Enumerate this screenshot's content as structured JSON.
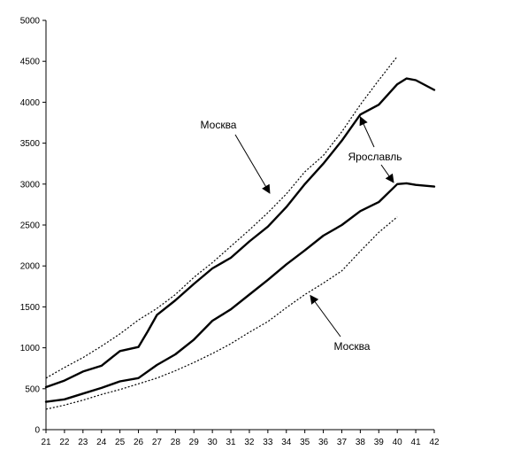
{
  "chart_data": {
    "type": "line",
    "xlim": [
      21,
      42
    ],
    "ylim": [
      0,
      5000
    ],
    "x_ticks": [
      "21",
      "22",
      "23",
      "24",
      "25",
      "26",
      "27",
      "28",
      "29",
      "30",
      "31",
      "32",
      "33",
      "34",
      "35",
      "36",
      "37",
      "38",
      "39",
      "40",
      "41",
      "42"
    ],
    "y_ticks": [
      "0",
      "500",
      "1000",
      "1500",
      "2000",
      "2500",
      "3000",
      "3500",
      "4000",
      "4500",
      "5000"
    ],
    "grid": false,
    "series": [
      {
        "name": "Ярославль",
        "style": "solid",
        "role": "upper",
        "x": [
          21,
          22,
          23,
          24,
          25,
          26,
          26.5,
          27,
          28,
          29,
          30,
          31,
          32,
          33,
          34,
          35,
          36,
          37,
          38,
          39,
          40,
          40.5,
          41,
          42
        ],
        "y": [
          520,
          600,
          710,
          780,
          960,
          1010,
          1200,
          1400,
          1580,
          1780,
          1970,
          2100,
          2300,
          2480,
          2720,
          3000,
          3250,
          3530,
          3850,
          3970,
          4220,
          4290,
          4270,
          4150
        ]
      },
      {
        "name": "Ярославль",
        "style": "solid",
        "role": "lower",
        "x": [
          21,
          22,
          23,
          24,
          25,
          26,
          27,
          28,
          29,
          30,
          31,
          32,
          33,
          34,
          35,
          36,
          37,
          38,
          39,
          40,
          40.5,
          41,
          42
        ],
        "y": [
          340,
          370,
          440,
          510,
          590,
          630,
          790,
          920,
          1100,
          1330,
          1470,
          1650,
          1830,
          2020,
          2190,
          2370,
          2500,
          2670,
          2780,
          3000,
          3010,
          2990,
          2970
        ]
      },
      {
        "name": "Москва",
        "style": "dotted",
        "role": "upper",
        "x": [
          21,
          22,
          23,
          24,
          25,
          26,
          27,
          28,
          29,
          30,
          31,
          32,
          33,
          34,
          35,
          36,
          37,
          38,
          39,
          40
        ],
        "y": [
          630,
          760,
          880,
          1020,
          1170,
          1340,
          1480,
          1650,
          1860,
          2040,
          2240,
          2440,
          2650,
          2880,
          3150,
          3350,
          3640,
          3970,
          4270,
          4560
        ]
      },
      {
        "name": "Москва",
        "style": "dotted",
        "role": "lower",
        "x": [
          21,
          22,
          23,
          24,
          25,
          26,
          27,
          28,
          29,
          30,
          31,
          32,
          33,
          34,
          35,
          36,
          37,
          38,
          39,
          40
        ],
        "y": [
          250,
          300,
          360,
          430,
          490,
          560,
          630,
          720,
          820,
          930,
          1050,
          1190,
          1320,
          1490,
          1650,
          1790,
          1940,
          2180,
          2410,
          2600
        ]
      }
    ],
    "annotations": [
      {
        "label": "Москва",
        "x": 33.1,
        "y": 2890,
        "text_at": "upper-left"
      },
      {
        "label": "Ярославль",
        "x": 38.0,
        "y": 3820,
        "x2": 39.8,
        "y2": 3020,
        "text_at": "right"
      },
      {
        "label": "Москва",
        "x": 35.3,
        "y": 1660,
        "text_at": "lower-right"
      }
    ]
  }
}
